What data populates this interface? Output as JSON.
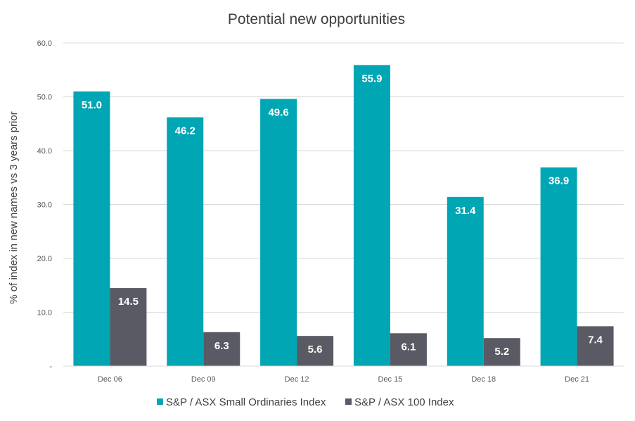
{
  "chart_data": {
    "type": "bar",
    "title": "Potential new opportunities",
    "ylabel": "% of index in new names vs 3 years prior",
    "xlabel": "",
    "categories": [
      "Dec 06",
      "Dec 09",
      "Dec 12",
      "Dec 15",
      "Dec 18",
      "Dec 21"
    ],
    "ylim": [
      0,
      60
    ],
    "yticks": [
      {
        "value": 0,
        "label": "-"
      },
      {
        "value": 10,
        "label": "10.0"
      },
      {
        "value": 20,
        "label": "20.0"
      },
      {
        "value": 30,
        "label": "30.0"
      },
      {
        "value": 40,
        "label": "40.0"
      },
      {
        "value": 50,
        "label": "50.0"
      },
      {
        "value": 60,
        "label": "60.0"
      }
    ],
    "grid": true,
    "legend_position": "bottom",
    "series": [
      {
        "name": "S&P / ASX Small Ordinaries Index",
        "color": "#00A6B4",
        "values": [
          51.0,
          46.2,
          49.6,
          55.9,
          31.4,
          36.9
        ],
        "labels": [
          "51.0",
          "46.2",
          "49.6",
          "55.9",
          "31.4",
          "36.9"
        ]
      },
      {
        "name": "S&P / ASX 100 Index",
        "color": "#595A63",
        "values": [
          14.5,
          6.3,
          5.6,
          6.1,
          5.2,
          7.4
        ],
        "labels": [
          "14.5",
          "6.3",
          "5.6",
          "6.1",
          "5.2",
          "7.4"
        ]
      }
    ]
  }
}
